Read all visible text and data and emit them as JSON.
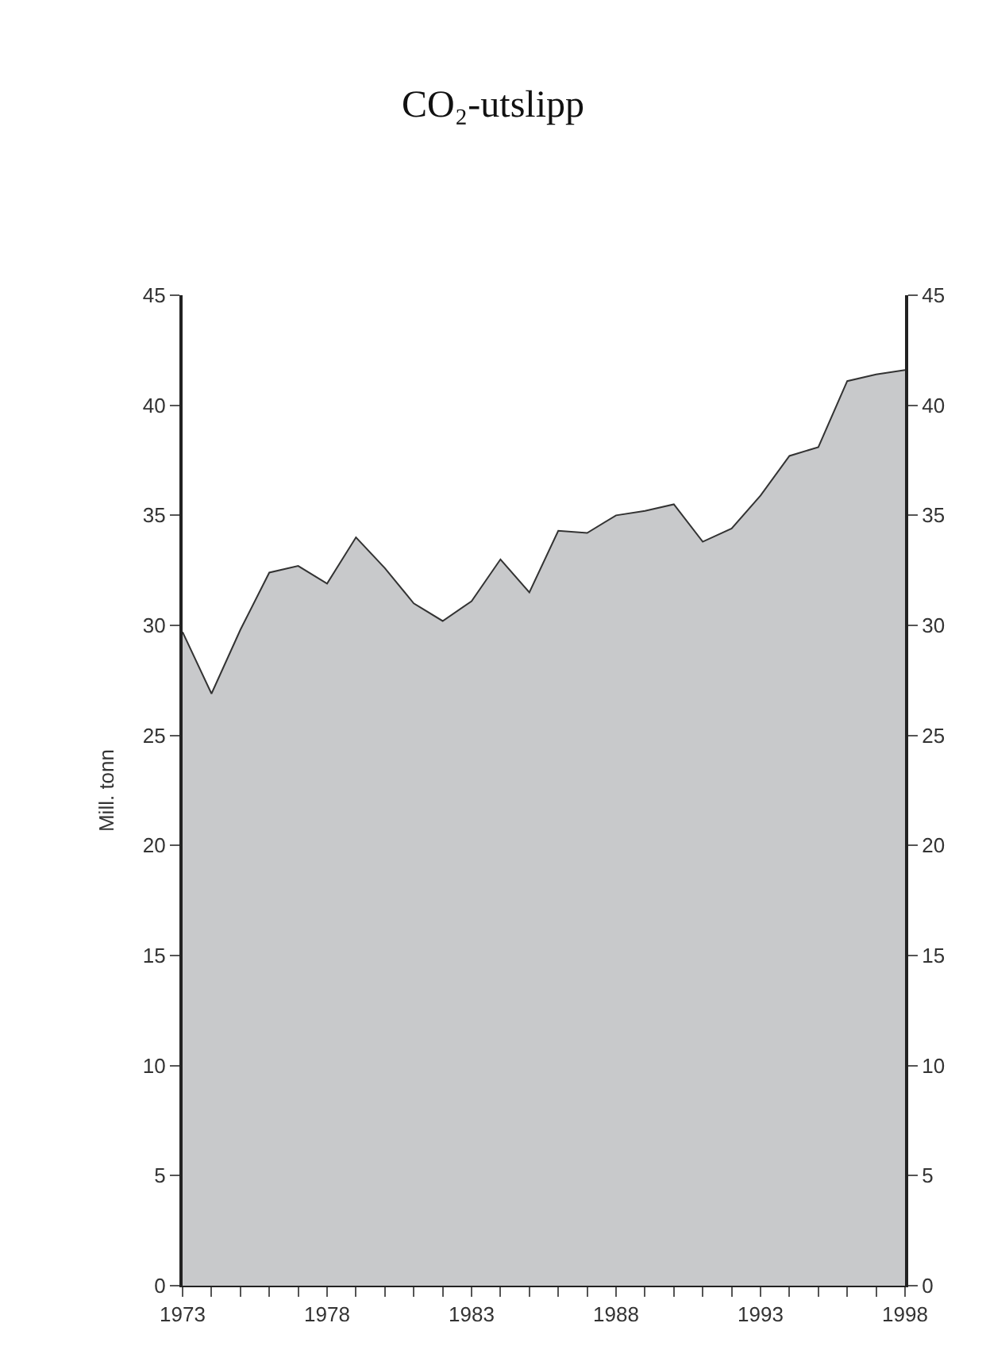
{
  "chart_data": {
    "type": "area",
    "title": "CO₂-utslipp",
    "ylabel": "Mill. tonn",
    "x": [
      1973,
      1974,
      1975,
      1976,
      1977,
      1978,
      1979,
      1980,
      1981,
      1982,
      1983,
      1984,
      1985,
      1986,
      1987,
      1988,
      1989,
      1990,
      1991,
      1992,
      1993,
      1994,
      1995,
      1996,
      1997,
      1998
    ],
    "series": [
      {
        "color": "#c8c9cb",
        "values": [
          29.7,
          26.9,
          29.8,
          32.4,
          32.7,
          31.9,
          34.0,
          32.6,
          31.0,
          30.2,
          31.1,
          33.0,
          31.5,
          34.3,
          34.2,
          35.0,
          35.2,
          35.5,
          33.8,
          34.4,
          35.9,
          37.7,
          38.1,
          41.1,
          41.4,
          41.6
        ]
      }
    ],
    "xlim": [
      1973,
      1998
    ],
    "xticks": [
      1973,
      {
        "value": 1974,
        "label": null
      },
      {
        "value": 1975,
        "label": null
      },
      {
        "value": 1976,
        "label": null
      },
      {
        "value": 1977,
        "label": null
      },
      1978,
      {
        "value": 1979,
        "label": null
      },
      {
        "value": 1980,
        "label": null
      },
      {
        "value": 1981,
        "label": null
      },
      {
        "value": 1982,
        "label": null
      },
      1983,
      {
        "value": 1984,
        "label": null
      },
      {
        "value": 1985,
        "label": null
      },
      {
        "value": 1986,
        "label": null
      },
      {
        "value": 1987,
        "label": null
      },
      1988,
      {
        "value": 1989,
        "label": null
      },
      {
        "value": 1990,
        "label": null
      },
      {
        "value": 1991,
        "label": null
      },
      {
        "value": 1992,
        "label": null
      },
      1993,
      {
        "value": 1994,
        "label": null
      },
      {
        "value": 1995,
        "label": null
      },
      {
        "value": 1996,
        "label": null
      },
      {
        "value": 1997,
        "label": null
      },
      1998
    ],
    "ylim": [
      0,
      45
    ],
    "yticks": [
      0,
      5,
      10,
      15,
      20,
      25,
      30,
      35,
      40,
      45
    ],
    "y2lim": [
      0,
      45
    ],
    "y2ticks": [
      0,
      5,
      10,
      15,
      20,
      25,
      30,
      35,
      40,
      45
    ],
    "legend": false
  }
}
